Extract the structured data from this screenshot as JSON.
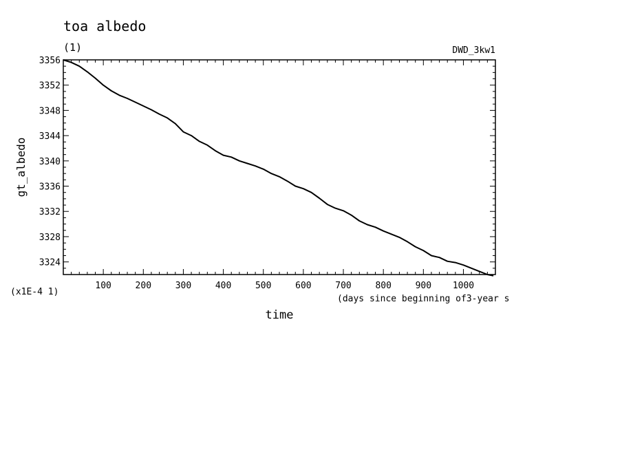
{
  "chart_data": {
    "type": "line",
    "title": "toa albedo",
    "subtitle": "(1)",
    "dataset_label": "DWD_3kw1",
    "xlabel": "time",
    "x_units_note": "(days since beginning of3-year s",
    "ylabel": "gt_albedo",
    "y_scale_note": "(x1E-4 1)",
    "xlim": [
      0,
      1080
    ],
    "ylim": [
      3322,
      3356
    ],
    "x_ticks": [
      100,
      200,
      300,
      400,
      500,
      600,
      700,
      800,
      900,
      1000
    ],
    "y_ticks": [
      3324,
      3328,
      3332,
      3336,
      3340,
      3344,
      3348,
      3352,
      3356
    ],
    "grid": false,
    "series": [
      {
        "color": "#000000",
        "x": [
          0,
          20,
          40,
          60,
          80,
          100,
          120,
          140,
          160,
          180,
          200,
          220,
          240,
          260,
          280,
          300,
          320,
          340,
          360,
          380,
          400,
          420,
          440,
          460,
          480,
          500,
          520,
          540,
          560,
          580,
          600,
          620,
          640,
          660,
          680,
          700,
          720,
          740,
          760,
          780,
          800,
          820,
          840,
          860,
          880,
          900,
          920,
          940,
          960,
          980,
          1000,
          1020,
          1040,
          1060,
          1075
        ],
        "y": [
          3356.0,
          3355.6,
          3355.0,
          3354.1,
          3353.1,
          3352.0,
          3351.1,
          3350.4,
          3349.9,
          3349.3,
          3348.7,
          3348.1,
          3347.4,
          3346.8,
          3345.9,
          3344.6,
          3344.0,
          3343.1,
          3342.5,
          3341.6,
          3340.9,
          3340.6,
          3340.0,
          3339.6,
          3339.2,
          3338.7,
          3338.0,
          3337.5,
          3336.8,
          3336.0,
          3335.6,
          3335.0,
          3334.1,
          3333.1,
          3332.5,
          3332.1,
          3331.4,
          3330.5,
          3329.9,
          3329.5,
          3328.9,
          3328.4,
          3327.9,
          3327.2,
          3326.4,
          3325.8,
          3325.0,
          3324.7,
          3324.1,
          3323.9,
          3323.5,
          3323.0,
          3322.5,
          3322.0,
          3321.8
        ]
      }
    ]
  }
}
